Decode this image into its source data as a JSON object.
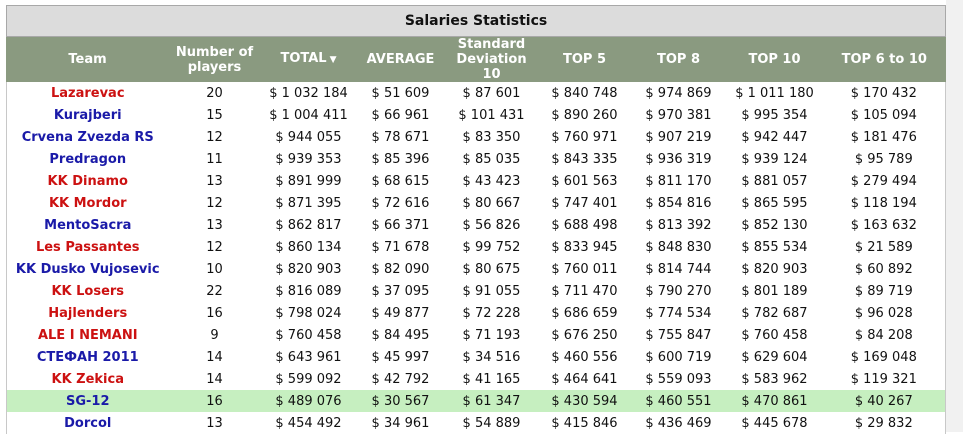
{
  "title": "Salaries Statistics",
  "columns": [
    {
      "key": "team",
      "label": "Team"
    },
    {
      "key": "players",
      "label": "Number of players"
    },
    {
      "key": "total",
      "label": "TOTAL",
      "sort_indicator": "▼"
    },
    {
      "key": "average",
      "label": "AVERAGE"
    },
    {
      "key": "stddev",
      "label": "Standard Deviation 10"
    },
    {
      "key": "top5",
      "label": "TOP 5"
    },
    {
      "key": "top8",
      "label": "TOP 8"
    },
    {
      "key": "top10",
      "label": "TOP 10"
    },
    {
      "key": "top6to10",
      "label": "TOP 6 to 10"
    }
  ],
  "colors": {
    "header_bg": "#8a9a80",
    "caption_bg": "#dcdcdc",
    "highlight_row": "#c6efc0",
    "team_red": "#cc1111",
    "team_blue": "#1a1aa8"
  },
  "rows": [
    {
      "team": "Lazarevac",
      "team_color": "red",
      "players": "20",
      "total": "$ 1 032 184",
      "average": "$ 51 609",
      "stddev": "$ 87 601",
      "top5": "$ 840 748",
      "top8": "$ 974 869",
      "top10": "$ 1 011 180",
      "top6to10": "$ 170 432"
    },
    {
      "team": "Kurajberi",
      "team_color": "blue",
      "players": "15",
      "total": "$ 1 004 411",
      "average": "$ 66 961",
      "stddev": "$ 101 431",
      "top5": "$ 890 260",
      "top8": "$ 970 381",
      "top10": "$ 995 354",
      "top6to10": "$ 105 094"
    },
    {
      "team": "Crvena Zvezda RS",
      "team_color": "blue",
      "players": "12",
      "total": "$ 944 055",
      "average": "$ 78 671",
      "stddev": "$ 83 350",
      "top5": "$ 760 971",
      "top8": "$ 907 219",
      "top10": "$ 942 447",
      "top6to10": "$ 181 476"
    },
    {
      "team": "Predragon",
      "team_color": "blue",
      "players": "11",
      "total": "$ 939 353",
      "average": "$ 85 396",
      "stddev": "$ 85 035",
      "top5": "$ 843 335",
      "top8": "$ 936 319",
      "top10": "$ 939 124",
      "top6to10": "$ 95 789"
    },
    {
      "team": "KK Dinamo",
      "team_color": "red",
      "players": "13",
      "total": "$ 891 999",
      "average": "$ 68 615",
      "stddev": "$ 43 423",
      "top5": "$ 601 563",
      "top8": "$ 811 170",
      "top10": "$ 881 057",
      "top6to10": "$ 279 494"
    },
    {
      "team": "KK Mordor",
      "team_color": "red",
      "players": "12",
      "total": "$ 871 395",
      "average": "$ 72 616",
      "stddev": "$ 80 667",
      "top5": "$ 747 401",
      "top8": "$ 854 816",
      "top10": "$ 865 595",
      "top6to10": "$ 118 194"
    },
    {
      "team": "MentoSacra",
      "team_color": "blue",
      "players": "13",
      "total": "$ 862 817",
      "average": "$ 66 371",
      "stddev": "$ 56 826",
      "top5": "$ 688 498",
      "top8": "$ 813 392",
      "top10": "$ 852 130",
      "top6to10": "$ 163 632"
    },
    {
      "team": "Les Passantes",
      "team_color": "red",
      "players": "12",
      "total": "$ 860 134",
      "average": "$ 71 678",
      "stddev": "$ 99 752",
      "top5": "$ 833 945",
      "top8": "$ 848 830",
      "top10": "$ 855 534",
      "top6to10": "$ 21 589"
    },
    {
      "team": "KK Dusko Vujosevic",
      "team_color": "blue",
      "players": "10",
      "total": "$ 820 903",
      "average": "$ 82 090",
      "stddev": "$ 80 675",
      "top5": "$ 760 011",
      "top8": "$ 814 744",
      "top10": "$ 820 903",
      "top6to10": "$ 60 892"
    },
    {
      "team": "KK Losers",
      "team_color": "red",
      "players": "22",
      "total": "$ 816 089",
      "average": "$ 37 095",
      "stddev": "$ 91 055",
      "top5": "$ 711 470",
      "top8": "$ 790 270",
      "top10": "$ 801 189",
      "top6to10": "$ 89 719"
    },
    {
      "team": "Hajlenders",
      "team_color": "red",
      "players": "16",
      "total": "$ 798 024",
      "average": "$ 49 877",
      "stddev": "$ 72 228",
      "top5": "$ 686 659",
      "top8": "$ 774 534",
      "top10": "$ 782 687",
      "top6to10": "$ 96 028"
    },
    {
      "team": "ALE I NEMANI",
      "team_color": "red",
      "players": "9",
      "total": "$ 760 458",
      "average": "$ 84 495",
      "stddev": "$ 71 193",
      "top5": "$ 676 250",
      "top8": "$ 755 847",
      "top10": "$ 760 458",
      "top6to10": "$ 84 208"
    },
    {
      "team": "СТЕФАН 2011",
      "team_color": "blue",
      "players": "14",
      "total": "$ 643 961",
      "average": "$ 45 997",
      "stddev": "$ 34 516",
      "top5": "$ 460 556",
      "top8": "$ 600 719",
      "top10": "$ 629 604",
      "top6to10": "$ 169 048"
    },
    {
      "team": "KK Zekica",
      "team_color": "red",
      "players": "14",
      "total": "$ 599 092",
      "average": "$ 42 792",
      "stddev": "$ 41 165",
      "top5": "$ 464 641",
      "top8": "$ 559 093",
      "top10": "$ 583 962",
      "top6to10": "$ 119 321"
    },
    {
      "team": "SG-12",
      "team_color": "blue",
      "highlight": true,
      "players": "16",
      "total": "$ 489 076",
      "average": "$ 30 567",
      "stddev": "$ 61 347",
      "top5": "$ 430 594",
      "top8": "$ 460 551",
      "top10": "$ 470 861",
      "top6to10": "$ 40 267"
    },
    {
      "team": "Dorcol",
      "team_color": "blue",
      "players": "13",
      "total": "$ 454 492",
      "average": "$ 34 961",
      "stddev": "$ 54 889",
      "top5": "$ 415 846",
      "top8": "$ 436 469",
      "top10": "$ 445 678",
      "top6to10": "$ 29 832"
    }
  ]
}
